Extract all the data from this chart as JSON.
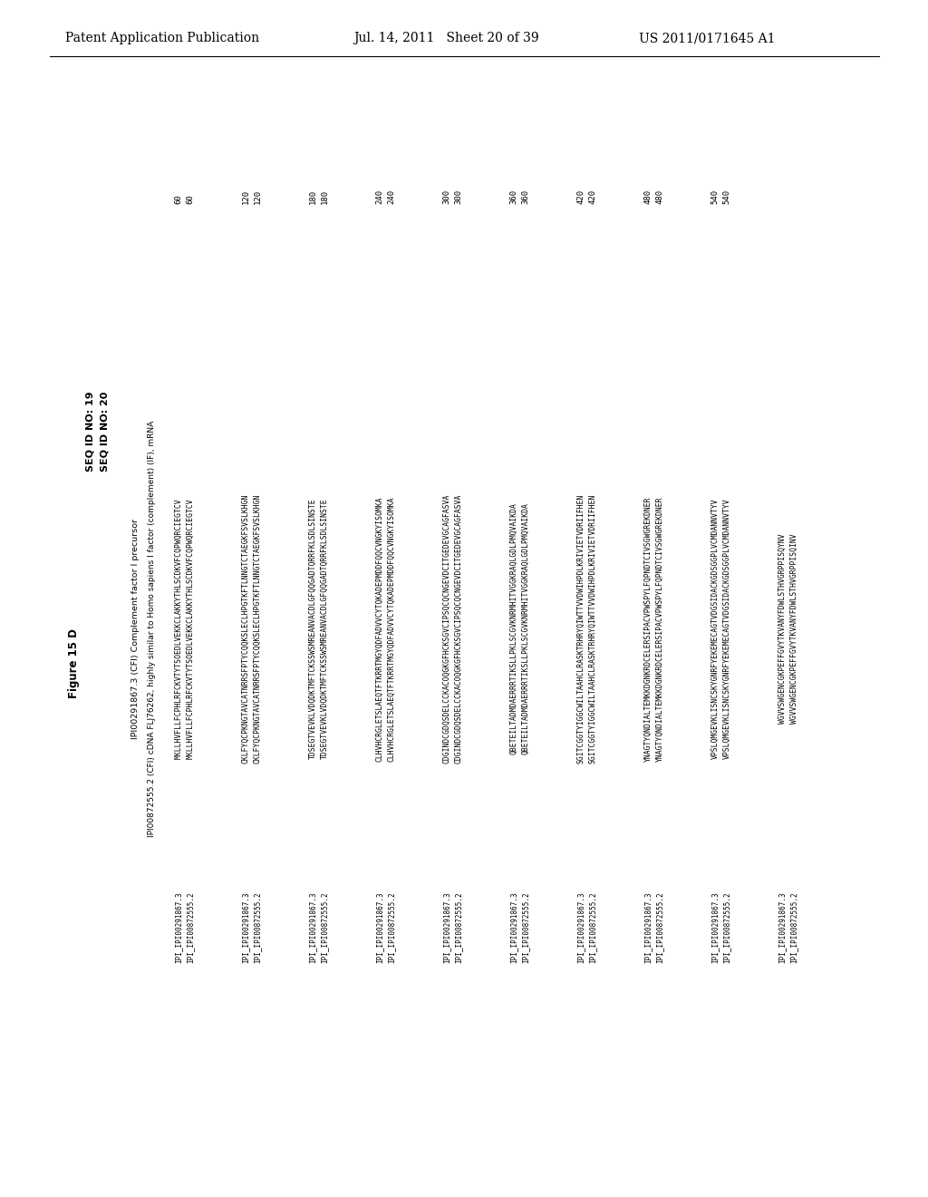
{
  "header_left": "Patent Application Publication",
  "header_center": "Jul. 14, 2011   Sheet 20 of 39",
  "header_right": "US 2011/0171645 A1",
  "figure_label": "Figure 15 D",
  "seq_id_19": "SEQ ID NO: 19",
  "seq_id_20": "SEQ ID NO: 20",
  "ipi_header1": "IPI00291867.3 (CFI) Complement factor I precursor",
  "ipi_header2": "IPI00872555.2 (CFI) cDNA FLJ76262, highly similar to Homo sapiens I factor (complement) (IF), mRNA",
  "seq_groups": [
    {
      "id1": "IPI_IPI00291867.3",
      "id2": "IPI_IPI00872555.2",
      "seq1": "MKLLHVFLLFCPHLRFCKVTYTSOEDLVEKKCLAKKYTHLSCDKVFCQPWQRCIEGTCV",
      "seq2": "MKLLHVFLLFCPHLRFCKVTYTSOEDLVEKKCLAKKYTHLSCDKVFCQPWQRCIEGTCV",
      "num1": "60",
      "num2": "60",
      "bold_region": "SOEDLVEKK",
      "box_region": "SOEDLVEKK"
    },
    {
      "id1": "IPI_IPI00291867.3",
      "id2": "IPI_IPI00872555.2",
      "seq1": "CKLFYQCPKNGTAVCATNRRSFPTYCQQKSLECLHPGTKFTLNNGTCTAEGKFSVSLKHGN",
      "seq2": "CKLFYQCPKNGTAVCATNRRSFPTYCQQKSLECLHPGTKFTLNNGTCTAEGKFSVSLKHGN",
      "num1": "120",
      "num2": "120",
      "underline_region": "SVSLKHGN"
    },
    {
      "id1": "IPI_IPI00291867.3",
      "id2": "IPI_IPI00872555.2",
      "seq1": "TDSEGTVEVKLVDQDKTMFTCKSSWSMREANVACDLGFQQGADTQRRFKLSDLSINSTE",
      "seq2": "TDSEGTVEVKLVDQDKTMFTCKSSWSMREANVACDLGFQQGADTQRRFKLSDLSINSTE",
      "num1": "180",
      "num2": "180",
      "underline_region": "TDSEGTVEVKLVDQDKTMFT"
    },
    {
      "id1": "IPI_IPI00291867.3",
      "id2": "IPI_IPI00872555.2",
      "seq1": "CLHVHCRGLETSLAEQTFTKRRTMGYQDFADVVCYTQKADEPMDDFQQCVNGKYISOMKA",
      "seq2": "CLHVHCRGLETSLAEQTFTKRRTMGYQDFADVVCYTQKADEPMDDFQQCVNGKYISOMKA",
      "num1": "240",
      "num2": "240",
      "underline_region": "CRGLETSLAEQT"
    },
    {
      "id1": "IPI_IPI00291867.3",
      "id2": "IPI_IPI00872555.2",
      "seq1": "CDGINDCGDQSDELCCKACOQGKGFHCKSGVCIPSQCQCNGEVDCITGEDEVGCAGFASVA",
      "seq2": "CDGINDCGDQSDELCCKACOQGKGFHCKSGVCIPSQCQCNGEVDCITGEDEVGCAGFASVA",
      "num1": "300",
      "num2": "300",
      "underline_region": ""
    },
    {
      "id1": "IPI_IPI00291867.3",
      "id2": "IPI_IPI00872555.2",
      "seq1": "QBETEILTADMDAERRRTIKSLLPKLSCGVKNRMHITVGGKRAQLGDLPMQVAIKDA",
      "seq2": "QBETEILTADMDAERRRTIKSLLPKLSCGVKNRMHITVGGKRAQLGDLPMQVAIKDA",
      "num1": "360",
      "num2": "360",
      "underline_region": "PKLSCGVKNRMH"
    },
    {
      "id1": "IPI_IPI00291867.3",
      "id2": "IPI_IPI00872555.2",
      "seq1": "SGITCGGTYIGGCWILTAAHCLRASKTRHRYQIWTTVVDWIHPDLKRIVIETVDRIIFHEN",
      "seq2": "SGITCGGTYIGGCWILTAAHCLRASKTRHRYQIWTTVVDWIHPDLKRIVIETVDRIIFHEN",
      "num1": "420",
      "num2": "420",
      "underline_region": "KRIVIETVDRI"
    },
    {
      "id1": "IPI_IPI00291867.3",
      "id2": "IPI_IPI00872555.2",
      "seq1": "YNAGTYQNDIALTEMKKDGNKRDCELERSIPACVPWSPYLFQPNDTCIVSGWGREKDNER",
      "seq2": "YNAGTYQNDIALTEMKKDGNKRDCELERSIPACVPWSPYLFQPNDTCIVSGWGREKDNER",
      "num1": "480",
      "num2": "480",
      "underline_region": ""
    },
    {
      "id1": "IPI_IPI00291867.3",
      "id2": "IPI_IPI00872555.2",
      "seq1": "VPSLQMGEVKLISNCSKYGNRFYEKEMECAGTVDGSIDACKGDSGGPLVCMDANNVTYV",
      "seq2": "VPSLQMGEVKLISNCSKYGNRFYEKEMECAGTVDGSIDACKGDSGGPLVCMDANNVTYV",
      "num1": "540",
      "num2": "540",
      "underline_region": ""
    },
    {
      "id1": "IPI_IPI00291867.3",
      "id2": "IPI_IPI00872555.2",
      "seq1": "WGVVSWGENCGKPEFFGVYTKVANYFDWLSTHVGRPPISQYNV",
      "seq2": "WGVVSWGENCGKPEFFGVYTKVANYFDWLSTHVGRPPISQINV",
      "num1": "",
      "num2": "",
      "underline_region": ""
    }
  ]
}
